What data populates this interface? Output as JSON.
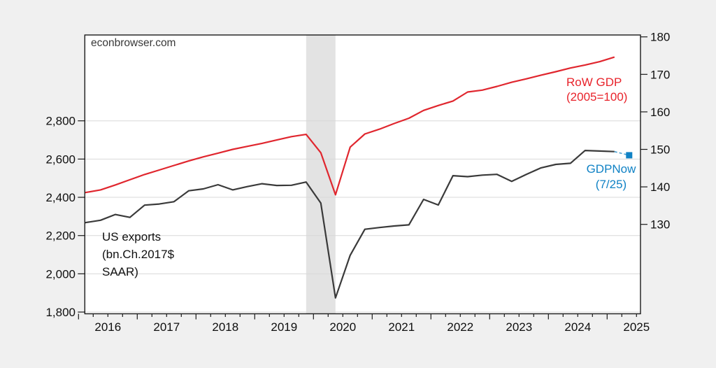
{
  "figure": {
    "watermark": "econbrowser.com",
    "background_color": "#f0f0f0",
    "plot_background_color": "#ffffff",
    "gridline_color": "#d8d8d8",
    "frame_color": "#1a1a1a",
    "recession_band": {
      "from_quarter": "2019Q4",
      "to_quarter": "2020Q2",
      "color": "#e3e3e3"
    },
    "annotations": {
      "us_exports": {
        "lines": [
          "US exports",
          "(bn.Ch.2017$",
          "SAAR)"
        ],
        "color": "#101010"
      },
      "row_gdp": {
        "lines": [
          "RoW GDP",
          "(2005=100)"
        ],
        "color": "#e8232b"
      },
      "gdpnow": {
        "lines": [
          "GDPNow",
          "(7/25)"
        ],
        "color": "#1082c5"
      }
    }
  },
  "chart_data": {
    "type": "line",
    "x_unit": "quarter",
    "grid": "horizontal",
    "legend": "in-plot text annotations",
    "categories": [
      "2015Q4",
      "2016Q1",
      "2016Q2",
      "2016Q3",
      "2016Q4",
      "2017Q1",
      "2017Q2",
      "2017Q3",
      "2017Q4",
      "2018Q1",
      "2018Q2",
      "2018Q3",
      "2018Q4",
      "2019Q1",
      "2019Q2",
      "2019Q3",
      "2019Q4",
      "2020Q1",
      "2020Q2",
      "2020Q3",
      "2020Q4",
      "2021Q1",
      "2021Q2",
      "2021Q3",
      "2021Q4",
      "2022Q1",
      "2022Q2",
      "2022Q3",
      "2022Q4",
      "2023Q1",
      "2023Q2",
      "2023Q3",
      "2023Q4",
      "2024Q1",
      "2024Q2",
      "2024Q3",
      "2024Q4",
      "2025Q1"
    ],
    "series": [
      {
        "name": "US exports (bn.Ch.2017$ SAAR)",
        "axis": "left",
        "color": "#3a3a3a",
        "values": [
          2262,
          2268,
          2280,
          2310,
          2295,
          2359,
          2365,
          2377,
          2434,
          2444,
          2466,
          2439,
          2456,
          2471,
          2462,
          2463,
          2480,
          2370,
          1874,
          2097,
          2233,
          2242,
          2250,
          2256,
          2389,
          2360,
          2513,
          2508,
          2516,
          2520,
          2483,
          2520,
          2554,
          2572,
          2578,
          2645,
          2642,
          2639
        ]
      },
      {
        "name": "RoW GDP (2005=100)",
        "axis": "right",
        "color": "#e0262e",
        "values": [
          138.1,
          138.5,
          139.2,
          140.5,
          141.9,
          143.3,
          144.5,
          145.7,
          146.9,
          148.0,
          149.0,
          150.0,
          150.8,
          151.6,
          152.5,
          153.4,
          154.0,
          149.1,
          137.9,
          150.6,
          154.1,
          155.4,
          156.9,
          158.3,
          160.4,
          161.7,
          162.9,
          165.3,
          165.8,
          166.8,
          167.9,
          168.8,
          169.8,
          170.7,
          171.7,
          172.5,
          173.4,
          174.6
        ]
      }
    ],
    "gdpnow_point": {
      "label": "GDPNow (7/25)",
      "quarter": "2025Q2",
      "value": 2620,
      "axis": "left",
      "marker_color": "#1082c5",
      "connector_color": "#4aa0d2"
    },
    "left_axis": {
      "tick_values": [
        2800,
        2600,
        2400,
        2200,
        2000,
        1800
      ],
      "tick_labels": [
        "2,800",
        "2,600",
        "2,400",
        "2,200",
        "2,000",
        "1,800"
      ],
      "range": [
        1800,
        3260
      ]
    },
    "right_axis": {
      "tick_values": [
        180,
        170,
        160,
        150,
        140,
        130
      ],
      "tick_labels": [
        "180",
        "170",
        "160",
        "150",
        "140",
        "130"
      ],
      "range": [
        130,
        180
      ]
    },
    "x_axis": {
      "year_labels": [
        "2016",
        "2017",
        "2018",
        "2019",
        "2020",
        "2021",
        "2022",
        "2023",
        "2024",
        "2025"
      ],
      "minor_tick": "quarterly"
    }
  }
}
